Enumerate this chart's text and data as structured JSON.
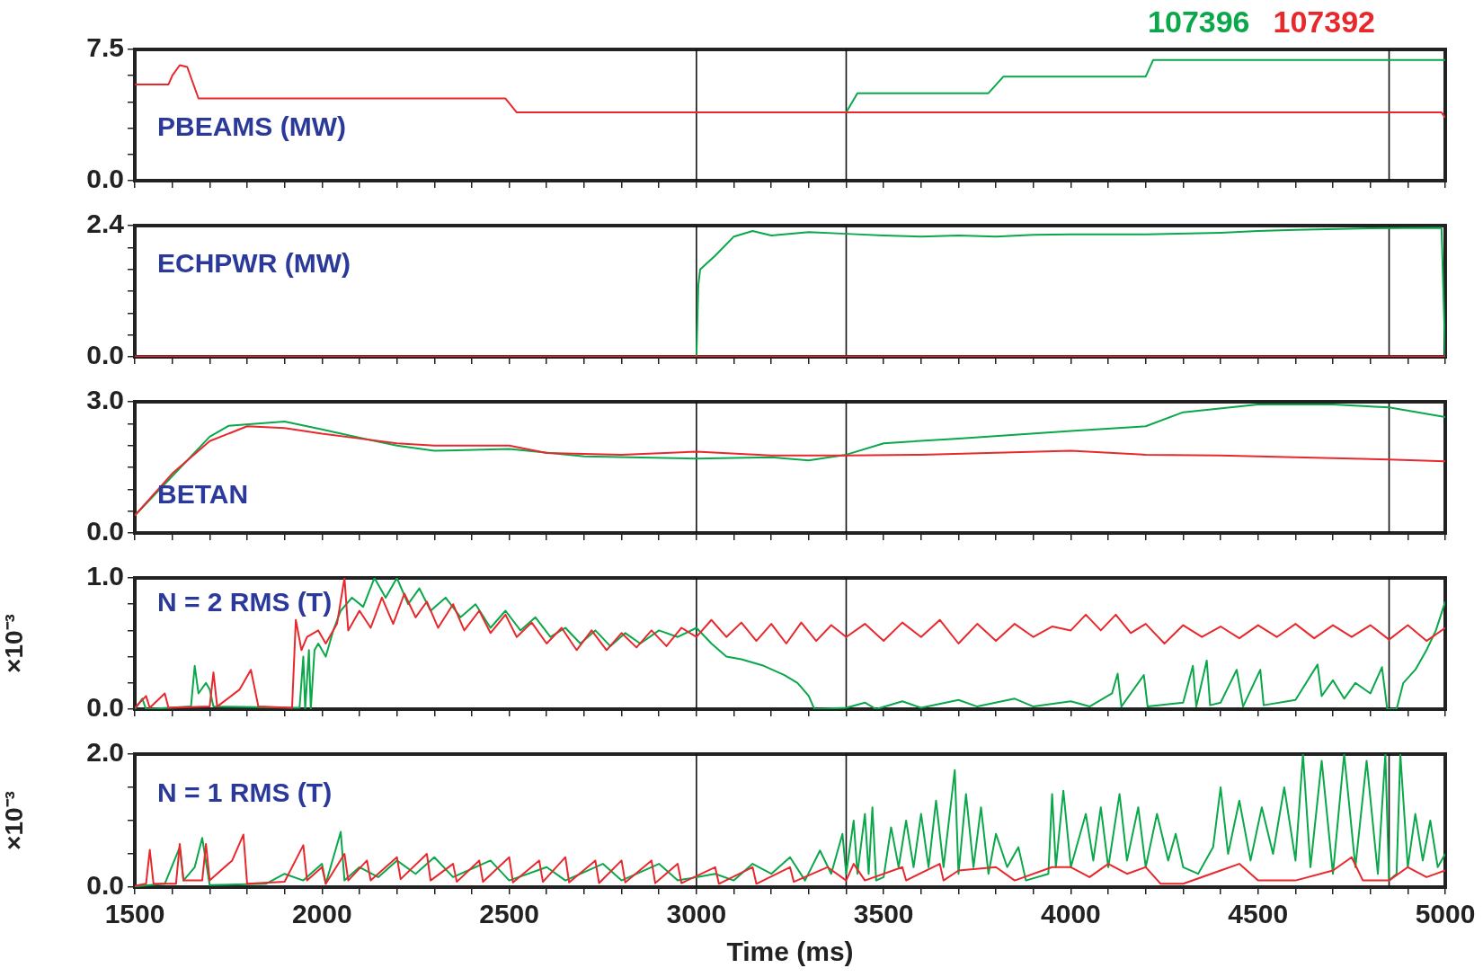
{
  "chart_data": [
    {
      "type": "line",
      "annotations": [
        "PBEAMS (MW)"
      ],
      "legend": "top right",
      "marker": "none",
      "tick_labels": "y",
      "xlim": [
        1500,
        5000
      ],
      "xticks": [
        1500,
        {
          "value": 1600,
          "label": null
        },
        {
          "value": 1700,
          "label": null
        },
        {
          "value": 1800,
          "label": null
        },
        {
          "value": 1900,
          "label": null
        },
        2000,
        {
          "value": 2100,
          "label": null
        },
        {
          "value": 2200,
          "label": null
        },
        {
          "value": 2300,
          "label": null
        },
        {
          "value": 2400,
          "label": null
        },
        2500,
        {
          "value": 2600,
          "label": null
        },
        {
          "value": 2700,
          "label": null
        },
        {
          "value": 2800,
          "label": null
        },
        {
          "value": 2900,
          "label": null
        },
        3000,
        {
          "value": 3100,
          "label": null
        },
        {
          "value": 3200,
          "label": null
        },
        {
          "value": 3300,
          "label": null
        },
        {
          "value": 3400,
          "label": null
        },
        3500,
        {
          "value": 3600,
          "label": null
        },
        {
          "value": 3700,
          "label": null
        },
        {
          "value": 3800,
          "label": null
        },
        {
          "value": 3900,
          "label": null
        },
        4000,
        {
          "value": 4100,
          "label": null
        },
        {
          "value": 4200,
          "label": null
        },
        {
          "value": 4300,
          "label": null
        },
        {
          "value": 4400,
          "label": null
        },
        4500,
        {
          "value": 4600,
          "label": null
        },
        {
          "value": 4700,
          "label": null
        },
        {
          "value": 4800,
          "label": null
        },
        {
          "value": 4900,
          "label": null
        },
        5000
      ],
      "ylim": [
        0,
        7.5
      ],
      "yticks": [
        {
          "value": 0,
          "label": "0.0"
        },
        {
          "value": 1.5,
          "label": null
        },
        {
          "value": 3,
          "label": null
        },
        {
          "value": 4.5,
          "label": null
        },
        {
          "value": 6,
          "label": null
        },
        7.5
      ],
      "ref_lines": [
        {
          "axis": "x",
          "value": 3000
        },
        {
          "axis": "x",
          "value": 3400
        },
        {
          "axis": "x",
          "value": 4850
        }
      ],
      "series": [
        {
          "name": "107396",
          "color": "#0aa84a",
          "x": [
            3390,
            3400,
            3430,
            3780,
            3820,
            4200,
            4220,
            5000
          ],
          "values": [
            3.9,
            3.9,
            5.0,
            5.0,
            5.95,
            5.95,
            6.9,
            6.9
          ]
        },
        {
          "name": "107392",
          "color": "#e8282c",
          "x": [
            1500,
            1590,
            1600,
            1620,
            1640,
            1670,
            2490,
            2520,
            4990,
            5000
          ],
          "values": [
            5.5,
            5.5,
            6.0,
            6.6,
            6.5,
            4.7,
            4.7,
            3.9,
            3.9,
            3.6
          ]
        }
      ]
    },
    {
      "type": "line",
      "annotations": [
        "ECHPWR (MW)"
      ],
      "marker": "none",
      "tick_labels": "y",
      "xlim": [
        1500,
        5000
      ],
      "xticks": [
        1500,
        {
          "value": 1600,
          "label": null
        },
        {
          "value": 1700,
          "label": null
        },
        {
          "value": 1800,
          "label": null
        },
        {
          "value": 1900,
          "label": null
        },
        2000,
        {
          "value": 2100,
          "label": null
        },
        {
          "value": 2200,
          "label": null
        },
        {
          "value": 2300,
          "label": null
        },
        {
          "value": 2400,
          "label": null
        },
        2500,
        {
          "value": 2600,
          "label": null
        },
        {
          "value": 2700,
          "label": null
        },
        {
          "value": 2800,
          "label": null
        },
        {
          "value": 2900,
          "label": null
        },
        3000,
        {
          "value": 3100,
          "label": null
        },
        {
          "value": 3200,
          "label": null
        },
        {
          "value": 3300,
          "label": null
        },
        {
          "value": 3400,
          "label": null
        },
        3500,
        {
          "value": 3600,
          "label": null
        },
        {
          "value": 3700,
          "label": null
        },
        {
          "value": 3800,
          "label": null
        },
        {
          "value": 3900,
          "label": null
        },
        4000,
        {
          "value": 4100,
          "label": null
        },
        {
          "value": 4200,
          "label": null
        },
        {
          "value": 4300,
          "label": null
        },
        {
          "value": 4400,
          "label": null
        },
        4500,
        {
          "value": 4600,
          "label": null
        },
        {
          "value": 4700,
          "label": null
        },
        {
          "value": 4800,
          "label": null
        },
        {
          "value": 4900,
          "label": null
        },
        5000
      ],
      "ylim": [
        0,
        2.4
      ],
      "yticks": [
        {
          "value": 0,
          "label": "0.0"
        },
        {
          "value": 0.4,
          "label": null
        },
        {
          "value": 0.8,
          "label": null
        },
        {
          "value": 1.2,
          "label": null
        },
        {
          "value": 1.6,
          "label": null
        },
        {
          "value": 2.0,
          "label": null
        },
        2.4
      ],
      "ref_lines": [
        {
          "axis": "x",
          "value": 3000
        },
        {
          "axis": "x",
          "value": 3400
        },
        {
          "axis": "x",
          "value": 4850
        }
      ],
      "series": [
        {
          "color": "#0aa84a",
          "x": [
            1500,
            3000,
            3005,
            3010,
            3050,
            3100,
            3150,
            3200,
            3300,
            3400,
            3500,
            3600,
            3700,
            3800,
            3900,
            4000,
            4200,
            4400,
            4500,
            4600,
            4800,
            4990,
            5000
          ],
          "values": [
            0.0,
            0.0,
            1.3,
            1.6,
            1.85,
            2.2,
            2.3,
            2.22,
            2.28,
            2.25,
            2.22,
            2.2,
            2.22,
            2.2,
            2.23,
            2.24,
            2.24,
            2.27,
            2.3,
            2.32,
            2.35,
            2.36,
            0.02
          ]
        },
        {
          "color": "#e8282c",
          "x": [
            1500,
            5000
          ],
          "values": [
            0.01,
            0.01
          ]
        }
      ]
    },
    {
      "type": "line",
      "annotations": [
        "BETAN"
      ],
      "marker": "none",
      "tick_labels": "y",
      "xlim": [
        1500,
        5000
      ],
      "xticks": [
        1500,
        {
          "value": 1600,
          "label": null
        },
        {
          "value": 1700,
          "label": null
        },
        {
          "value": 1800,
          "label": null
        },
        {
          "value": 1900,
          "label": null
        },
        2000,
        {
          "value": 2100,
          "label": null
        },
        {
          "value": 2200,
          "label": null
        },
        {
          "value": 2300,
          "label": null
        },
        {
          "value": 2400,
          "label": null
        },
        2500,
        {
          "value": 2600,
          "label": null
        },
        {
          "value": 2700,
          "label": null
        },
        {
          "value": 2800,
          "label": null
        },
        {
          "value": 2900,
          "label": null
        },
        3000,
        {
          "value": 3100,
          "label": null
        },
        {
          "value": 3200,
          "label": null
        },
        {
          "value": 3300,
          "label": null
        },
        {
          "value": 3400,
          "label": null
        },
        3500,
        {
          "value": 3600,
          "label": null
        },
        {
          "value": 3700,
          "label": null
        },
        {
          "value": 3800,
          "label": null
        },
        {
          "value": 3900,
          "label": null
        },
        4000,
        {
          "value": 4100,
          "label": null
        },
        {
          "value": 4200,
          "label": null
        },
        {
          "value": 4300,
          "label": null
        },
        {
          "value": 4400,
          "label": null
        },
        4500,
        {
          "value": 4600,
          "label": null
        },
        {
          "value": 4700,
          "label": null
        },
        {
          "value": 4800,
          "label": null
        },
        {
          "value": 4900,
          "label": null
        },
        5000
      ],
      "ylim": [
        0,
        3.0
      ],
      "yticks": [
        {
          "value": 0,
          "label": "0.0"
        },
        {
          "value": 0.5,
          "label": null
        },
        {
          "value": 1.0,
          "label": null
        },
        {
          "value": 1.5,
          "label": null
        },
        {
          "value": 2.0,
          "label": null
        },
        {
          "value": 2.5,
          "label": null
        },
        {
          "value": 3,
          "label": "3.0"
        }
      ],
      "ref_lines": [
        {
          "axis": "x",
          "value": 3000
        },
        {
          "axis": "x",
          "value": 3400
        },
        {
          "axis": "x",
          "value": 4850
        }
      ],
      "series": [
        {
          "color": "#0aa84a",
          "x": [
            1500,
            1600,
            1700,
            1750,
            1900,
            2000,
            2100,
            2200,
            2300,
            2500,
            2700,
            3000,
            3200,
            3300,
            3400,
            3500,
            3700,
            4000,
            4200,
            4300,
            4500,
            4700,
            4850,
            5000
          ],
          "values": [
            0.4,
            1.3,
            2.2,
            2.45,
            2.55,
            2.37,
            2.18,
            2.0,
            1.88,
            1.92,
            1.75,
            1.7,
            1.73,
            1.66,
            1.79,
            2.05,
            2.16,
            2.33,
            2.44,
            2.76,
            2.94,
            2.94,
            2.87,
            2.65
          ]
        },
        {
          "color": "#e8282c",
          "x": [
            1500,
            1600,
            1700,
            1800,
            1900,
            2000,
            2100,
            2200,
            2300,
            2500,
            2600,
            2800,
            3000,
            3200,
            3400,
            3600,
            4000,
            4200,
            4400,
            4600,
            4850,
            5000
          ],
          "values": [
            0.4,
            1.36,
            2.1,
            2.44,
            2.4,
            2.27,
            2.16,
            2.05,
            2.0,
            2.0,
            1.83,
            1.79,
            1.86,
            1.77,
            1.77,
            1.79,
            1.88,
            1.79,
            1.77,
            1.73,
            1.68,
            1.64
          ]
        }
      ]
    },
    {
      "type": "line",
      "annotations": [
        "N = 2 RMS (T)"
      ],
      "ylabel": "×10⁻³",
      "marker": "none",
      "tick_labels": "y",
      "xlim": [
        1500,
        5000
      ],
      "xticks": [
        1500,
        {
          "value": 1600,
          "label": null
        },
        {
          "value": 1700,
          "label": null
        },
        {
          "value": 1800,
          "label": null
        },
        {
          "value": 1900,
          "label": null
        },
        2000,
        {
          "value": 2100,
          "label": null
        },
        {
          "value": 2200,
          "label": null
        },
        {
          "value": 2300,
          "label": null
        },
        {
          "value": 2400,
          "label": null
        },
        2500,
        {
          "value": 2600,
          "label": null
        },
        {
          "value": 2700,
          "label": null
        },
        {
          "value": 2800,
          "label": null
        },
        {
          "value": 2900,
          "label": null
        },
        3000,
        {
          "value": 3100,
          "label": null
        },
        {
          "value": 3200,
          "label": null
        },
        {
          "value": 3300,
          "label": null
        },
        {
          "value": 3400,
          "label": null
        },
        3500,
        {
          "value": 3600,
          "label": null
        },
        {
          "value": 3700,
          "label": null
        },
        {
          "value": 3800,
          "label": null
        },
        {
          "value": 3900,
          "label": null
        },
        4000,
        {
          "value": 4100,
          "label": null
        },
        {
          "value": 4200,
          "label": null
        },
        {
          "value": 4300,
          "label": null
        },
        {
          "value": 4400,
          "label": null
        },
        4500,
        {
          "value": 4600,
          "label": null
        },
        {
          "value": 4700,
          "label": null
        },
        {
          "value": 4800,
          "label": null
        },
        {
          "value": 4900,
          "label": null
        },
        5000
      ],
      "ylim": [
        0,
        1.0
      ],
      "yticks": [
        {
          "value": 0,
          "label": "0.0"
        },
        {
          "value": 0.2,
          "label": null
        },
        {
          "value": 0.4,
          "label": null
        },
        {
          "value": 0.6,
          "label": null
        },
        {
          "value": 0.8,
          "label": null
        },
        {
          "value": 1,
          "label": "1.0"
        }
      ],
      "ref_lines": [
        {
          "axis": "x",
          "value": 3000
        },
        {
          "axis": "x",
          "value": 3400
        },
        {
          "axis": "x",
          "value": 4850
        }
      ],
      "series": [
        {
          "color": "#0aa84a",
          "x": [
            1500,
            1520,
            1530,
            1650,
            1660,
            1670,
            1690,
            1700,
            1710,
            1940,
            1950,
            1955,
            1965,
            1970,
            1980,
            1990,
            2010,
            2030,
            2050,
            2080,
            2110,
            2140,
            2170,
            2200,
            2230,
            2260,
            2290,
            2330,
            2370,
            2410,
            2450,
            2490,
            2530,
            2570,
            2610,
            2650,
            2690,
            2730,
            2770,
            2810,
            2850,
            2900,
            2950,
            3000,
            3040,
            3080,
            3120,
            3180,
            3235,
            3270,
            3300,
            3315,
            3400,
            3450,
            3480,
            3550,
            3600,
            3700,
            3750,
            3850,
            3900,
            4000,
            4050,
            4110,
            4125,
            4135,
            4195,
            4205,
            4300,
            4326,
            4335,
            4363,
            4372,
            4400,
            4443,
            4460,
            4506,
            4515,
            4600,
            4659,
            4670,
            4700,
            4730,
            4760,
            4800,
            4831,
            4845,
            4870,
            4888,
            4920,
            4950,
            4975,
            5000
          ],
          "values": [
            0.0,
            0.08,
            0.0,
            0.02,
            0.33,
            0.12,
            0.2,
            0.15,
            0.02,
            0.01,
            0.4,
            0.0,
            0.45,
            0.0,
            0.45,
            0.5,
            0.4,
            0.6,
            0.75,
            0.85,
            0.78,
            1.0,
            0.85,
            1.0,
            0.8,
            0.92,
            0.75,
            0.85,
            0.7,
            0.8,
            0.62,
            0.75,
            0.6,
            0.7,
            0.55,
            0.62,
            0.5,
            0.6,
            0.48,
            0.58,
            0.5,
            0.6,
            0.55,
            0.62,
            0.5,
            0.4,
            0.38,
            0.33,
            0.26,
            0.2,
            0.1,
            0.0,
            0.01,
            0.05,
            0.0,
            0.06,
            0.01,
            0.07,
            0.02,
            0.08,
            0.02,
            0.06,
            0.02,
            0.12,
            0.27,
            0.02,
            0.26,
            0.02,
            0.05,
            0.33,
            0.02,
            0.37,
            0.03,
            0.05,
            0.3,
            0.02,
            0.3,
            0.03,
            0.07,
            0.34,
            0.1,
            0.22,
            0.08,
            0.2,
            0.12,
            0.32,
            0.0,
            0.0,
            0.2,
            0.3,
            0.45,
            0.6,
            0.82
          ]
        },
        {
          "color": "#e8282c",
          "x": [
            1500,
            1530,
            1540,
            1580,
            1590,
            1700,
            1710,
            1720,
            1780,
            1800,
            1810,
            1830,
            1920,
            1930,
            1945,
            1960,
            1990,
            2010,
            2040,
            2060,
            2070,
            2100,
            2130,
            2160,
            2190,
            2220,
            2250,
            2280,
            2310,
            2350,
            2380,
            2420,
            2450,
            2490,
            2520,
            2560,
            2600,
            2640,
            2680,
            2720,
            2760,
            2800,
            2840,
            2880,
            2920,
            2960,
            3000,
            3040,
            3080,
            3120,
            3160,
            3200,
            3240,
            3280,
            3320,
            3360,
            3400,
            3450,
            3500,
            3550,
            3600,
            3650,
            3700,
            3750,
            3800,
            3850,
            3900,
            3950,
            4000,
            4040,
            4080,
            4120,
            4160,
            4200,
            4250,
            4300,
            4350,
            4400,
            4450,
            4500,
            4550,
            4600,
            4650,
            4700,
            4750,
            4800,
            4850,
            4900,
            4950,
            5000
          ],
          "values": [
            0.01,
            0.1,
            0.01,
            0.12,
            0.01,
            0.02,
            0.28,
            0.02,
            0.15,
            0.25,
            0.3,
            0.02,
            0.01,
            0.68,
            0.45,
            0.55,
            0.6,
            0.5,
            0.65,
            1.0,
            0.6,
            0.75,
            0.62,
            0.85,
            0.65,
            0.88,
            0.7,
            0.82,
            0.62,
            0.8,
            0.6,
            0.75,
            0.58,
            0.72,
            0.55,
            0.66,
            0.5,
            0.62,
            0.45,
            0.6,
            0.45,
            0.58,
            0.47,
            0.6,
            0.48,
            0.62,
            0.55,
            0.68,
            0.55,
            0.66,
            0.52,
            0.65,
            0.5,
            0.66,
            0.52,
            0.64,
            0.55,
            0.65,
            0.52,
            0.66,
            0.55,
            0.68,
            0.5,
            0.65,
            0.52,
            0.65,
            0.55,
            0.63,
            0.6,
            0.72,
            0.6,
            0.72,
            0.58,
            0.65,
            0.5,
            0.64,
            0.55,
            0.63,
            0.54,
            0.64,
            0.55,
            0.65,
            0.54,
            0.64,
            0.55,
            0.64,
            0.53,
            0.64,
            0.52,
            0.62
          ]
        }
      ]
    },
    {
      "type": "line",
      "annotations": [
        "N = 1 RMS (T)"
      ],
      "ylabel": "×10⁻³",
      "xlabel": "Time (ms)",
      "marker": "none",
      "xlim": [
        1500,
        5000
      ],
      "xticks": [
        1500,
        {
          "value": 1600,
          "label": null
        },
        {
          "value": 1700,
          "label": null
        },
        {
          "value": 1800,
          "label": null
        },
        {
          "value": 1900,
          "label": null
        },
        2000,
        {
          "value": 2100,
          "label": null
        },
        {
          "value": 2200,
          "label": null
        },
        {
          "value": 2300,
          "label": null
        },
        {
          "value": 2400,
          "label": null
        },
        2500,
        {
          "value": 2600,
          "label": null
        },
        {
          "value": 2700,
          "label": null
        },
        {
          "value": 2800,
          "label": null
        },
        {
          "value": 2900,
          "label": null
        },
        3000,
        {
          "value": 3100,
          "label": null
        },
        {
          "value": 3200,
          "label": null
        },
        {
          "value": 3300,
          "label": null
        },
        {
          "value": 3400,
          "label": null
        },
        3500,
        {
          "value": 3600,
          "label": null
        },
        {
          "value": 3700,
          "label": null
        },
        {
          "value": 3800,
          "label": null
        },
        {
          "value": 3900,
          "label": null
        },
        4000,
        {
          "value": 4100,
          "label": null
        },
        {
          "value": 4200,
          "label": null
        },
        {
          "value": 4300,
          "label": null
        },
        {
          "value": 4400,
          "label": null
        },
        4500,
        {
          "value": 4600,
          "label": null
        },
        {
          "value": 4700,
          "label": null
        },
        {
          "value": 4800,
          "label": null
        },
        {
          "value": 4900,
          "label": null
        },
        5000
      ],
      "ylim": [
        0,
        2.0
      ],
      "yticks": [
        {
          "value": 0,
          "label": "0.0"
        },
        {
          "value": 0.5,
          "label": null
        },
        {
          "value": 1.0,
          "label": null
        },
        {
          "value": 1.5,
          "label": null
        },
        {
          "value": 2,
          "label": "2.0"
        }
      ],
      "ref_lines": [
        {
          "axis": "x",
          "value": 3000
        },
        {
          "axis": "x",
          "value": 3400
        },
        {
          "axis": "x",
          "value": 4850
        }
      ],
      "series": [
        {
          "color": "#0aa84a",
          "x": [
            1500,
            1580,
            1620,
            1630,
            1660,
            1680,
            1700,
            1850,
            1900,
            1950,
            2000,
            2010,
            2050,
            2060,
            2100,
            2150,
            2200,
            2250,
            2300,
            2350,
            2450,
            2500,
            2600,
            2650,
            2750,
            2800,
            2900,
            2950,
            3050,
            3100,
            3150,
            3200,
            3250,
            3290,
            3330,
            3360,
            3390,
            3400,
            3420,
            3430,
            3450,
            3460,
            3470,
            3480,
            3500,
            3520,
            3540,
            3560,
            3580,
            3600,
            3620,
            3640,
            3660,
            3690,
            3700,
            3720,
            3740,
            3760,
            3780,
            3800,
            3830,
            3860,
            3880,
            3940,
            3950,
            3960,
            3980,
            4000,
            4040,
            4060,
            4080,
            4100,
            4130,
            4150,
            4180,
            4200,
            4230,
            4260,
            4280,
            4300,
            4340,
            4380,
            4400,
            4420,
            4450,
            4480,
            4510,
            4540,
            4570,
            4600,
            4620,
            4640,
            4670,
            4700,
            4730,
            4760,
            4790,
            4820,
            4840,
            4850,
            4870,
            4880,
            4900,
            4920,
            4940,
            4960,
            4980,
            5000
          ],
          "values": [
            0.01,
            0.05,
            0.6,
            0.1,
            0.3,
            0.74,
            0.03,
            0.05,
            0.2,
            0.1,
            0.35,
            0.05,
            0.83,
            0.1,
            0.3,
            0.15,
            0.4,
            0.2,
            0.45,
            0.15,
            0.4,
            0.1,
            0.3,
            0.1,
            0.35,
            0.1,
            0.35,
            0.1,
            0.2,
            0.1,
            0.35,
            0.2,
            0.45,
            0.1,
            0.55,
            0.2,
            0.8,
            0.2,
            1.0,
            0.2,
            1.1,
            0.2,
            1.2,
            0.1,
            0.15,
            0.9,
            0.3,
            1.0,
            0.3,
            1.1,
            0.3,
            1.3,
            0.3,
            1.76,
            0.2,
            1.4,
            0.3,
            1.2,
            0.2,
            0.8,
            0.3,
            0.6,
            0.1,
            0.2,
            1.4,
            0.3,
            1.45,
            0.3,
            1.1,
            0.4,
            1.2,
            0.3,
            1.4,
            0.4,
            1.2,
            0.3,
            1.1,
            0.4,
            0.8,
            0.3,
            0.2,
            0.6,
            1.5,
            0.5,
            1.3,
            0.4,
            1.2,
            0.5,
            1.5,
            0.4,
            2.0,
            0.3,
            1.9,
            0.2,
            2.0,
            0.3,
            1.9,
            0.2,
            2.0,
            0.1,
            0.2,
            2.0,
            0.3,
            1.1,
            0.4,
            1.0,
            0.3,
            0.5
          ]
        },
        {
          "color": "#e8282c",
          "x": [
            1500,
            1530,
            1540,
            1550,
            1610,
            1620,
            1630,
            1680,
            1690,
            1700,
            1760,
            1790,
            1800,
            1900,
            1950,
            1960,
            2000,
            2010,
            2060,
            2070,
            2120,
            2130,
            2200,
            2210,
            2280,
            2290,
            2350,
            2360,
            2420,
            2430,
            2500,
            2510,
            2580,
            2590,
            2650,
            2660,
            2730,
            2740,
            2800,
            2810,
            2880,
            2890,
            2950,
            2960,
            3050,
            3060,
            3150,
            3160,
            3250,
            3260,
            3350,
            3400,
            3420,
            3450,
            3550,
            3560,
            3650,
            3660,
            3700,
            3800,
            3850,
            3950,
            4000,
            4050,
            4100,
            4150,
            4200,
            4240,
            4300,
            4400,
            4450,
            4500,
            4600,
            4700,
            4750,
            4780,
            4850,
            4900,
            4950,
            5000
          ],
          "values": [
            0.02,
            0.05,
            0.56,
            0.05,
            0.05,
            0.65,
            0.1,
            0.1,
            0.65,
            0.1,
            0.4,
            0.79,
            0.05,
            0.08,
            0.63,
            0.1,
            0.3,
            0.05,
            0.5,
            0.1,
            0.4,
            0.1,
            0.45,
            0.12,
            0.5,
            0.1,
            0.35,
            0.08,
            0.4,
            0.08,
            0.45,
            0.07,
            0.4,
            0.08,
            0.45,
            0.07,
            0.4,
            0.06,
            0.4,
            0.07,
            0.4,
            0.06,
            0.35,
            0.06,
            0.3,
            0.05,
            0.3,
            0.05,
            0.3,
            0.08,
            0.3,
            0.1,
            0.35,
            0.1,
            0.3,
            0.1,
            0.35,
            0.1,
            0.25,
            0.3,
            0.1,
            0.3,
            0.3,
            0.15,
            0.35,
            0.2,
            0.3,
            0.05,
            0.05,
            0.25,
            0.35,
            0.1,
            0.1,
            0.25,
            0.45,
            0.1,
            0.1,
            0.3,
            0.15,
            0.25
          ]
        }
      ]
    }
  ]
}
